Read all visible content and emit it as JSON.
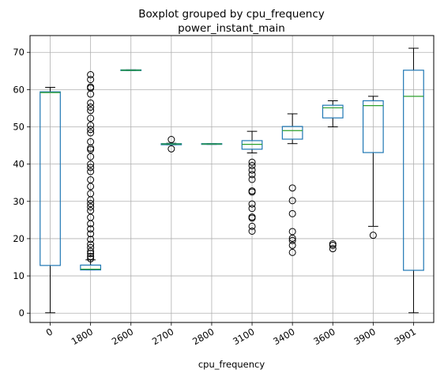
{
  "chart_data": {
    "type": "boxplot",
    "title": "Boxplot grouped by cpu_frequency",
    "subtitle": "power_instant_main",
    "xlabel": "cpu_frequency",
    "ylabel": "",
    "ylim": [
      -2.5,
      74.5
    ],
    "yticks": [
      0,
      10,
      20,
      30,
      40,
      50,
      60,
      70
    ],
    "grid": true,
    "colors": {
      "box": "#1f77b4",
      "median": "#2ca02c",
      "whisker": "#000000",
      "grid": "#b0b0b0",
      "flier": "#000000"
    },
    "categories": [
      "0",
      "1800",
      "2600",
      "2700",
      "2800",
      "3100",
      "3400",
      "3600",
      "3900",
      "3901"
    ],
    "boxes": [
      {
        "category": "0",
        "whislo": 0.1,
        "q1": 12.8,
        "med": 59.2,
        "q3": 59.4,
        "whishi": 60.6,
        "fliers": []
      },
      {
        "category": "1800",
        "whislo": 11.6,
        "q1": 11.6,
        "med": 11.8,
        "q3": 12.9,
        "whishi": 14.3,
        "fliers": [
          14.6,
          15.2,
          16.0,
          16.6,
          17.6,
          18.5,
          19.8,
          21.3,
          22.6,
          24.0,
          25.7,
          27.5,
          28.5,
          29.4,
          30.4,
          32.1,
          34.0,
          35.8,
          38.0,
          39.1,
          40.0,
          42.0,
          43.9,
          44.3,
          46.0,
          48.4,
          49.3,
          50.4,
          52.3,
          54.4,
          55.3,
          56.4,
          58.8,
          60.4,
          60.7,
          62.7,
          64.0
        ]
      },
      {
        "category": "2600",
        "whislo": 65.1,
        "q1": 65.1,
        "med": 65.2,
        "q3": 65.3,
        "whishi": 65.3,
        "fliers": []
      },
      {
        "category": "2700",
        "whislo": 45.2,
        "q1": 45.2,
        "med": 45.4,
        "q3": 45.5,
        "whishi": 45.6,
        "fliers": [
          44.1,
          46.6
        ]
      },
      {
        "category": "2800",
        "whislo": 45.3,
        "q1": 45.3,
        "med": 45.4,
        "q3": 45.5,
        "whishi": 45.5,
        "fliers": []
      },
      {
        "category": "3100",
        "whislo": 43.0,
        "q1": 44.0,
        "med": 45.3,
        "q3": 46.3,
        "whishi": 48.8,
        "fliers": [
          22.0,
          23.3,
          25.5,
          25.8,
          28.1,
          29.3,
          32.5,
          32.8,
          35.9,
          37.2,
          38.4,
          39.6,
          40.5
        ]
      },
      {
        "category": "3400",
        "whislo": 45.5,
        "q1": 46.7,
        "med": 49.0,
        "q3": 50.1,
        "whishi": 53.5,
        "fliers": [
          16.3,
          18.2,
          19.5,
          20.1,
          21.9,
          26.7,
          30.2,
          33.6
        ]
      },
      {
        "category": "3600",
        "whislo": 50.0,
        "q1": 52.4,
        "med": 55.1,
        "q3": 55.8,
        "whishi": 57.0,
        "fliers": [
          17.3,
          18.2,
          18.6
        ]
      },
      {
        "category": "3900",
        "whislo": 23.3,
        "q1": 43.1,
        "med": 55.7,
        "q3": 57.0,
        "whishi": 58.2,
        "fliers": [
          20.9
        ]
      },
      {
        "category": "3901",
        "whislo": 0.1,
        "q1": 11.5,
        "med": 58.2,
        "q3": 65.2,
        "whishi": 71.1,
        "fliers": []
      }
    ]
  }
}
